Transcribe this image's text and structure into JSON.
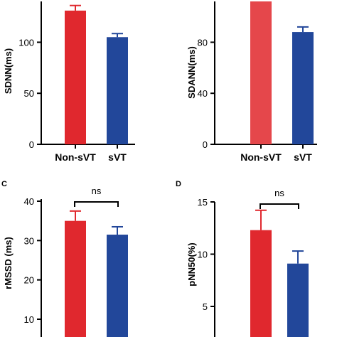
{
  "chart_data": [
    {
      "type": "bar",
      "panel": "A",
      "panel_label": "",
      "categories": [
        "Non-sVT",
        "sVT"
      ],
      "values": [
        131,
        105
      ],
      "errors": [
        5,
        3.5
      ],
      "colors": [
        "#e0282e",
        "#22479a"
      ],
      "ylabel": "SDNN(ms)",
      "ylim": [
        0,
        140
      ],
      "yticks": [
        0,
        50,
        100
      ],
      "significance": ""
    },
    {
      "type": "bar",
      "panel": "B",
      "panel_label": "",
      "categories": [
        "Non-sVT",
        "sVT"
      ],
      "values": [
        112,
        88
      ],
      "errors": [
        0,
        4
      ],
      "colors": [
        "#e5474b",
        "#22479a"
      ],
      "ylabel": "SDANN(ms)",
      "ylim": [
        0,
        112
      ],
      "yticks": [
        0,
        40,
        80
      ],
      "significance": ""
    },
    {
      "type": "bar",
      "panel": "C",
      "panel_label": "C",
      "categories": [
        "Non-sVT",
        "sVT"
      ],
      "values": [
        35,
        31.5
      ],
      "errors": [
        2.5,
        2
      ],
      "colors": [
        "#e0282e",
        "#22479a"
      ],
      "ylabel": "rMSSD (ms)",
      "ylim": [
        0,
        40
      ],
      "yticks": [
        10,
        20,
        30,
        40
      ],
      "significance": "ns"
    },
    {
      "type": "bar",
      "panel": "D",
      "panel_label": "D",
      "categories": [
        "Non-sVT",
        "sVT"
      ],
      "values": [
        12.3,
        9.1
      ],
      "errors": [
        1.9,
        1.2
      ],
      "colors": [
        "#e0282e",
        "#22479a"
      ],
      "ylabel": "pNN50(%)",
      "ylim": [
        0,
        15
      ],
      "yticks": [
        5,
        10,
        15
      ],
      "significance": "ns"
    }
  ]
}
